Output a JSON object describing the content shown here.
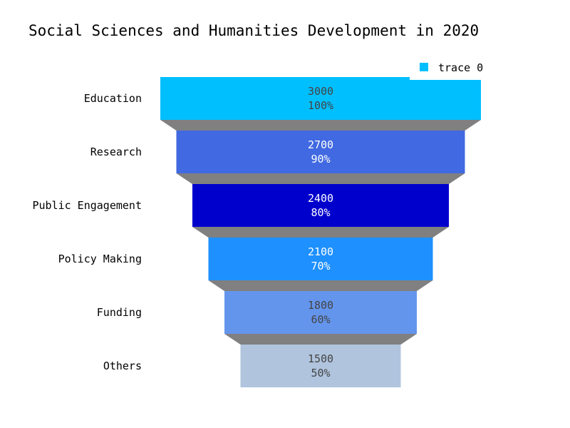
{
  "chart_data": {
    "type": "funnel",
    "title": "Social Sciences and Humanities Development in 2020",
    "categories": [
      "Education",
      "Research",
      "Public Engagement",
      "Policy Making",
      "Funding",
      "Others"
    ],
    "series": [
      {
        "name": "trace 0",
        "values": [
          3000,
          2700,
          2400,
          2100,
          1800,
          1500
        ],
        "percent_labels": [
          "100%",
          "90%",
          "80%",
          "70%",
          "60%",
          "50%"
        ]
      }
    ],
    "bar_colors": [
      "#00bfff",
      "#4169e1",
      "#0000cd",
      "#1e90ff",
      "#6495ed",
      "#b0c4de"
    ],
    "label_colors": [
      "#444444",
      "#ffffff",
      "#ffffff",
      "#ffffff",
      "#444444",
      "#444444"
    ],
    "connector_color": "#808080",
    "legend_color": "#00bfff",
    "legend_position": "top-right"
  }
}
